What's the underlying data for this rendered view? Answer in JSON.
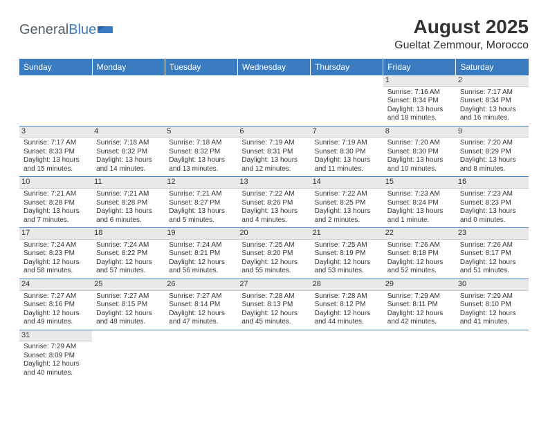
{
  "logo": {
    "part1": "General",
    "part2": "Blue"
  },
  "monthTitle": "August 2025",
  "location": "Gueltat Zemmour, Morocco",
  "colors": {
    "headerBg": "#3b7bbf",
    "headerText": "#ffffff",
    "dayShade": "#e9e9e9",
    "rowDivider": "#3b7bbf",
    "bodyText": "#333333"
  },
  "weekdays": [
    "Sunday",
    "Monday",
    "Tuesday",
    "Wednesday",
    "Thursday",
    "Friday",
    "Saturday"
  ],
  "grid": [
    [
      null,
      null,
      null,
      null,
      null,
      {
        "n": "1",
        "sr": "Sunrise: 7:16 AM",
        "ss": "Sunset: 8:34 PM",
        "d1": "Daylight: 13 hours",
        "d2": "and 18 minutes."
      },
      {
        "n": "2",
        "sr": "Sunrise: 7:17 AM",
        "ss": "Sunset: 8:34 PM",
        "d1": "Daylight: 13 hours",
        "d2": "and 16 minutes."
      }
    ],
    [
      {
        "n": "3",
        "sr": "Sunrise: 7:17 AM",
        "ss": "Sunset: 8:33 PM",
        "d1": "Daylight: 13 hours",
        "d2": "and 15 minutes."
      },
      {
        "n": "4",
        "sr": "Sunrise: 7:18 AM",
        "ss": "Sunset: 8:32 PM",
        "d1": "Daylight: 13 hours",
        "d2": "and 14 minutes."
      },
      {
        "n": "5",
        "sr": "Sunrise: 7:18 AM",
        "ss": "Sunset: 8:32 PM",
        "d1": "Daylight: 13 hours",
        "d2": "and 13 minutes."
      },
      {
        "n": "6",
        "sr": "Sunrise: 7:19 AM",
        "ss": "Sunset: 8:31 PM",
        "d1": "Daylight: 13 hours",
        "d2": "and 12 minutes."
      },
      {
        "n": "7",
        "sr": "Sunrise: 7:19 AM",
        "ss": "Sunset: 8:30 PM",
        "d1": "Daylight: 13 hours",
        "d2": "and 11 minutes."
      },
      {
        "n": "8",
        "sr": "Sunrise: 7:20 AM",
        "ss": "Sunset: 8:30 PM",
        "d1": "Daylight: 13 hours",
        "d2": "and 10 minutes."
      },
      {
        "n": "9",
        "sr": "Sunrise: 7:20 AM",
        "ss": "Sunset: 8:29 PM",
        "d1": "Daylight: 13 hours",
        "d2": "and 8 minutes."
      }
    ],
    [
      {
        "n": "10",
        "sr": "Sunrise: 7:21 AM",
        "ss": "Sunset: 8:28 PM",
        "d1": "Daylight: 13 hours",
        "d2": "and 7 minutes."
      },
      {
        "n": "11",
        "sr": "Sunrise: 7:21 AM",
        "ss": "Sunset: 8:28 PM",
        "d1": "Daylight: 13 hours",
        "d2": "and 6 minutes."
      },
      {
        "n": "12",
        "sr": "Sunrise: 7:21 AM",
        "ss": "Sunset: 8:27 PM",
        "d1": "Daylight: 13 hours",
        "d2": "and 5 minutes."
      },
      {
        "n": "13",
        "sr": "Sunrise: 7:22 AM",
        "ss": "Sunset: 8:26 PM",
        "d1": "Daylight: 13 hours",
        "d2": "and 4 minutes."
      },
      {
        "n": "14",
        "sr": "Sunrise: 7:22 AM",
        "ss": "Sunset: 8:25 PM",
        "d1": "Daylight: 13 hours",
        "d2": "and 2 minutes."
      },
      {
        "n": "15",
        "sr": "Sunrise: 7:23 AM",
        "ss": "Sunset: 8:24 PM",
        "d1": "Daylight: 13 hours",
        "d2": "and 1 minute."
      },
      {
        "n": "16",
        "sr": "Sunrise: 7:23 AM",
        "ss": "Sunset: 8:23 PM",
        "d1": "Daylight: 13 hours",
        "d2": "and 0 minutes."
      }
    ],
    [
      {
        "n": "17",
        "sr": "Sunrise: 7:24 AM",
        "ss": "Sunset: 8:23 PM",
        "d1": "Daylight: 12 hours",
        "d2": "and 58 minutes."
      },
      {
        "n": "18",
        "sr": "Sunrise: 7:24 AM",
        "ss": "Sunset: 8:22 PM",
        "d1": "Daylight: 12 hours",
        "d2": "and 57 minutes."
      },
      {
        "n": "19",
        "sr": "Sunrise: 7:24 AM",
        "ss": "Sunset: 8:21 PM",
        "d1": "Daylight: 12 hours",
        "d2": "and 56 minutes."
      },
      {
        "n": "20",
        "sr": "Sunrise: 7:25 AM",
        "ss": "Sunset: 8:20 PM",
        "d1": "Daylight: 12 hours",
        "d2": "and 55 minutes."
      },
      {
        "n": "21",
        "sr": "Sunrise: 7:25 AM",
        "ss": "Sunset: 8:19 PM",
        "d1": "Daylight: 12 hours",
        "d2": "and 53 minutes."
      },
      {
        "n": "22",
        "sr": "Sunrise: 7:26 AM",
        "ss": "Sunset: 8:18 PM",
        "d1": "Daylight: 12 hours",
        "d2": "and 52 minutes."
      },
      {
        "n": "23",
        "sr": "Sunrise: 7:26 AM",
        "ss": "Sunset: 8:17 PM",
        "d1": "Daylight: 12 hours",
        "d2": "and 51 minutes."
      }
    ],
    [
      {
        "n": "24",
        "sr": "Sunrise: 7:27 AM",
        "ss": "Sunset: 8:16 PM",
        "d1": "Daylight: 12 hours",
        "d2": "and 49 minutes."
      },
      {
        "n": "25",
        "sr": "Sunrise: 7:27 AM",
        "ss": "Sunset: 8:15 PM",
        "d1": "Daylight: 12 hours",
        "d2": "and 48 minutes."
      },
      {
        "n": "26",
        "sr": "Sunrise: 7:27 AM",
        "ss": "Sunset: 8:14 PM",
        "d1": "Daylight: 12 hours",
        "d2": "and 47 minutes."
      },
      {
        "n": "27",
        "sr": "Sunrise: 7:28 AM",
        "ss": "Sunset: 8:13 PM",
        "d1": "Daylight: 12 hours",
        "d2": "and 45 minutes."
      },
      {
        "n": "28",
        "sr": "Sunrise: 7:28 AM",
        "ss": "Sunset: 8:12 PM",
        "d1": "Daylight: 12 hours",
        "d2": "and 44 minutes."
      },
      {
        "n": "29",
        "sr": "Sunrise: 7:29 AM",
        "ss": "Sunset: 8:11 PM",
        "d1": "Daylight: 12 hours",
        "d2": "and 42 minutes."
      },
      {
        "n": "30",
        "sr": "Sunrise: 7:29 AM",
        "ss": "Sunset: 8:10 PM",
        "d1": "Daylight: 12 hours",
        "d2": "and 41 minutes."
      }
    ],
    [
      {
        "n": "31",
        "sr": "Sunrise: 7:29 AM",
        "ss": "Sunset: 8:09 PM",
        "d1": "Daylight: 12 hours",
        "d2": "and 40 minutes."
      },
      null,
      null,
      null,
      null,
      null,
      null
    ]
  ]
}
